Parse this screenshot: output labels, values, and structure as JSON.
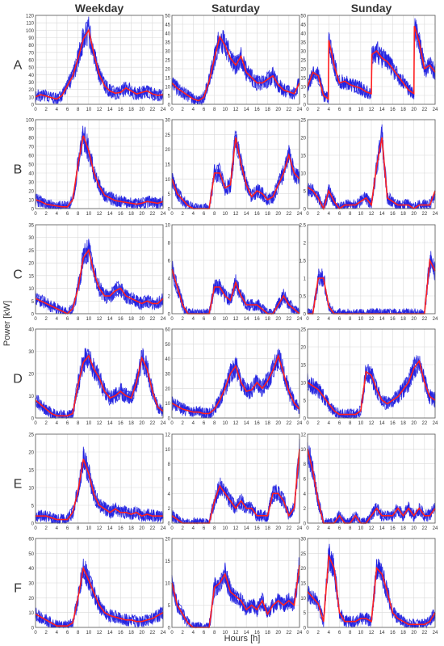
{
  "figure": {
    "column_titles": [
      "Weekday",
      "Saturday",
      "Sunday"
    ],
    "row_labels": [
      "A",
      "B",
      "C",
      "D",
      "E",
      "F"
    ],
    "ylabel": "Power [kW]",
    "xlabel": "Hours [h]",
    "colors": {
      "band": "#1f1fe0",
      "mean": "#ff2020",
      "grid": "#d9d9d9",
      "axis": "#555555"
    }
  },
  "chart_data": [
    {
      "type": "line",
      "row": "A",
      "column": "Weekday",
      "xlim": [
        0,
        24
      ],
      "ylim": [
        0,
        120
      ],
      "yticks": [
        0,
        10,
        20,
        30,
        40,
        50,
        60,
        70,
        80,
        90,
        100,
        110,
        120
      ],
      "x": [
        0,
        1,
        2,
        3,
        4,
        5,
        6,
        7,
        8,
        9,
        10,
        11,
        12,
        13,
        14,
        15,
        16,
        17,
        18,
        19,
        20,
        21,
        22,
        23,
        24
      ],
      "series": [
        {
          "values": [
            10,
            13,
            11,
            9,
            7,
            12,
            25,
            38,
            62,
            88,
            100,
            68,
            40,
            25,
            18,
            15,
            16,
            22,
            18,
            14,
            16,
            18,
            14,
            12,
            13
          ]
        }
      ]
    },
    {
      "type": "line",
      "row": "A",
      "column": "Saturday",
      "xlim": [
        0,
        24
      ],
      "ylim": [
        0,
        50
      ],
      "yticks": [
        0,
        5,
        10,
        15,
        20,
        25,
        30,
        35,
        40,
        45,
        50
      ],
      "x": [
        0,
        1,
        2,
        3,
        4,
        5,
        6,
        7,
        8,
        9,
        10,
        11,
        12,
        13,
        14,
        15,
        16,
        17,
        18,
        19,
        20,
        21,
        22,
        23,
        24
      ],
      "series": [
        {
          "values": [
            12,
            9,
            7,
            5,
            3,
            2,
            4,
            13,
            26,
            38,
            33,
            26,
            22,
            27,
            18,
            15,
            12,
            12,
            14,
            16,
            11,
            8,
            7,
            6,
            12
          ]
        }
      ]
    },
    {
      "type": "line",
      "row": "A",
      "column": "Sunday",
      "xlim": [
        0,
        24
      ],
      "ylim": [
        0,
        50
      ],
      "yticks": [
        0,
        5,
        10,
        15,
        20,
        25,
        30,
        35,
        40,
        45,
        50
      ],
      "x": [
        0,
        1,
        2,
        3,
        3.9,
        4,
        5,
        6,
        7,
        8,
        9,
        10,
        11,
        12,
        12.1,
        13,
        14,
        15,
        16,
        17,
        18,
        19,
        20,
        20.1,
        21,
        22,
        23,
        24
      ],
      "series": [
        {
          "values": [
            10,
            18,
            16,
            5,
            3,
            36,
            22,
            12,
            13,
            11,
            10,
            9,
            7,
            6,
            28,
            30,
            26,
            24,
            20,
            16,
            12,
            8,
            6,
            44,
            35,
            20,
            22,
            18
          ]
        }
      ]
    },
    {
      "type": "line",
      "row": "B",
      "column": "Weekday",
      "xlim": [
        0,
        24
      ],
      "ylim": [
        0,
        100
      ],
      "yticks": [
        0,
        10,
        20,
        30,
        40,
        50,
        60,
        70,
        80,
        90,
        100
      ],
      "x": [
        0,
        1,
        2,
        3,
        4,
        5,
        6,
        7,
        8,
        9,
        10,
        11,
        12,
        13,
        14,
        15,
        16,
        17,
        18,
        19,
        20,
        21,
        22,
        23,
        24
      ],
      "series": [
        {
          "values": [
            10,
            8,
            5,
            4,
            3,
            2,
            2,
            10,
            50,
            82,
            65,
            40,
            25,
            15,
            12,
            9,
            8,
            7,
            6,
            5,
            6,
            8,
            7,
            6,
            8
          ]
        }
      ]
    },
    {
      "type": "line",
      "row": "B",
      "column": "Saturday",
      "xlim": [
        0,
        24
      ],
      "ylim": [
        0,
        30
      ],
      "yticks": [
        0,
        5,
        10,
        15,
        20,
        25,
        30
      ],
      "x": [
        0,
        1,
        2,
        3,
        4,
        5,
        6,
        7,
        8,
        9,
        10,
        11,
        12,
        13,
        14,
        15,
        16,
        17,
        18,
        19,
        20,
        21,
        22,
        23,
        24
      ],
      "series": [
        {
          "values": [
            10,
            5,
            3,
            1,
            0,
            0,
            0,
            0,
            12,
            12,
            7,
            8,
            24,
            15,
            8,
            4,
            6,
            5,
            3,
            4,
            8,
            12,
            18,
            12,
            10
          ]
        }
      ]
    },
    {
      "type": "line",
      "row": "B",
      "column": "Sunday",
      "xlim": [
        0,
        24
      ],
      "ylim": [
        0,
        25
      ],
      "yticks": [
        0,
        5,
        10,
        15,
        20,
        25
      ],
      "x": [
        0,
        1,
        2,
        3,
        4,
        5,
        6,
        7,
        8,
        9,
        10,
        11,
        12,
        13,
        14,
        15,
        16,
        17,
        18,
        19,
        20,
        21,
        22,
        23,
        24
      ],
      "series": [
        {
          "values": [
            6,
            5,
            3,
            0,
            5,
            2,
            0,
            1,
            1,
            1,
            2,
            3,
            1,
            12,
            20,
            3,
            2,
            1,
            1,
            1,
            0,
            1,
            1,
            1,
            5
          ]
        }
      ]
    },
    {
      "type": "line",
      "row": "C",
      "column": "Weekday",
      "xlim": [
        0,
        24
      ],
      "ylim": [
        0,
        35
      ],
      "yticks": [
        0,
        5,
        10,
        15,
        20,
        25,
        30,
        35
      ],
      "x": [
        0,
        1,
        2,
        3,
        4,
        5,
        6,
        7,
        8,
        9,
        10,
        11,
        12,
        13,
        14,
        15,
        16,
        17,
        18,
        19,
        20,
        21,
        22,
        23,
        24
      ],
      "series": [
        {
          "values": [
            6,
            5,
            4,
            3,
            2,
            1,
            0,
            2,
            10,
            22,
            25,
            16,
            10,
            7,
            7,
            9,
            10,
            7,
            6,
            5,
            4,
            5,
            4,
            4,
            6
          ]
        }
      ]
    },
    {
      "type": "line",
      "row": "C",
      "column": "Saturday",
      "xlim": [
        0,
        24
      ],
      "ylim": [
        0,
        10
      ],
      "yticks": [
        0,
        2,
        4,
        6,
        8,
        10
      ],
      "x": [
        0,
        1,
        2,
        3,
        4,
        5,
        6,
        7,
        8,
        9,
        10,
        11,
        12,
        13,
        14,
        15,
        16,
        17,
        18,
        19,
        20,
        21,
        22,
        23,
        24
      ],
      "series": [
        {
          "values": [
            5,
            3,
            1,
            0,
            0,
            0,
            0,
            0,
            3,
            3,
            2,
            1.5,
            3.5,
            2,
            1,
            1,
            1,
            0.5,
            0,
            0,
            1,
            2,
            1,
            0.5,
            0
          ]
        }
      ]
    },
    {
      "type": "line",
      "row": "C",
      "column": "Sunday",
      "xlim": [
        0,
        24
      ],
      "ylim": [
        0,
        2.5
      ],
      "yticks": [
        0,
        0.5,
        1,
        1.5,
        2,
        2.5
      ],
      "x": [
        0,
        1,
        2,
        3,
        4,
        5,
        6,
        7,
        8,
        9,
        10,
        11,
        12,
        13,
        14,
        15,
        16,
        17,
        18,
        19,
        20,
        21,
        22,
        23,
        24
      ],
      "series": [
        {
          "values": [
            0,
            0,
            1,
            1,
            0.2,
            0,
            0,
            0,
            0,
            0,
            0,
            0,
            0,
            0,
            0,
            0,
            0,
            0,
            0,
            0,
            0,
            0,
            0,
            1.5,
            1.2
          ]
        }
      ]
    },
    {
      "type": "line",
      "row": "D",
      "column": "Weekday",
      "xlim": [
        0,
        24
      ],
      "ylim": [
        0,
        40
      ],
      "yticks": [
        0,
        10,
        20,
        30,
        40
      ],
      "x": [
        0,
        1,
        2,
        3,
        4,
        5,
        6,
        7,
        8,
        9,
        10,
        11,
        12,
        13,
        14,
        15,
        16,
        17,
        18,
        19,
        20,
        21,
        22,
        23,
        24
      ],
      "series": [
        {
          "values": [
            8,
            6,
            4,
            2,
            1,
            1,
            1,
            2,
            15,
            25,
            28,
            22,
            18,
            12,
            9,
            10,
            12,
            10,
            9,
            16,
            27,
            22,
            12,
            5,
            3
          ]
        }
      ]
    },
    {
      "type": "line",
      "row": "D",
      "column": "Saturday",
      "xlim": [
        0,
        24
      ],
      "ylim": [
        0,
        60
      ],
      "yticks": [
        0,
        10,
        20,
        30,
        40,
        50,
        60
      ],
      "x": [
        0,
        1,
        2,
        3,
        4,
        5,
        6,
        7,
        8,
        9,
        10,
        11,
        12,
        13,
        14,
        15,
        16,
        17,
        18,
        19,
        20,
        21,
        22,
        23,
        24
      ],
      "series": [
        {
          "values": [
            10,
            8,
            6,
            5,
            4,
            4,
            3,
            3,
            6,
            12,
            20,
            30,
            35,
            24,
            18,
            19,
            24,
            20,
            25,
            32,
            42,
            30,
            18,
            10,
            6
          ]
        }
      ]
    },
    {
      "type": "line",
      "row": "D",
      "column": "Sunday",
      "xlim": [
        0,
        24
      ],
      "ylim": [
        0,
        25
      ],
      "yticks": [
        0,
        5,
        10,
        15,
        20,
        25
      ],
      "x": [
        0,
        1,
        2,
        3,
        4,
        5,
        6,
        7,
        8,
        9,
        10,
        11,
        12,
        13,
        14,
        15,
        16,
        17,
        18,
        19,
        20,
        21,
        22,
        23,
        24
      ],
      "series": [
        {
          "values": [
            10,
            9,
            8,
            6,
            4,
            2,
            1,
            1,
            1,
            1,
            2,
            13,
            12,
            8,
            5,
            4,
            5,
            6,
            8,
            10,
            14,
            16,
            10,
            6,
            5
          ]
        }
      ]
    },
    {
      "type": "line",
      "row": "E",
      "column": "Weekday",
      "xlim": [
        0,
        24
      ],
      "ylim": [
        0,
        25
      ],
      "yticks": [
        0,
        5,
        10,
        15,
        20,
        25
      ],
      "x": [
        0,
        1,
        2,
        3,
        4,
        5,
        6,
        7,
        8,
        9,
        10,
        11,
        12,
        13,
        14,
        15,
        16,
        17,
        18,
        19,
        20,
        21,
        22,
        23,
        24
      ],
      "series": [
        {
          "values": [
            2,
            2,
            2,
            1.5,
            1,
            1,
            1,
            3,
            9,
            18,
            14,
            8,
            5,
            4,
            3,
            4,
            3,
            3,
            2.5,
            3,
            2,
            2.5,
            2,
            2,
            2
          ]
        }
      ]
    },
    {
      "type": "line",
      "row": "E",
      "column": "Saturday",
      "xlim": [
        0,
        24
      ],
      "ylim": [
        0,
        12
      ],
      "yticks": [
        0,
        2,
        4,
        6,
        8,
        10,
        12
      ],
      "x": [
        0,
        1,
        2,
        3,
        4,
        5,
        6,
        7,
        8,
        9,
        10,
        11,
        12,
        13,
        14,
        15,
        16,
        17,
        18,
        19,
        20,
        21,
        22,
        23,
        24
      ],
      "series": [
        {
          "values": [
            1,
            0.5,
            0,
            0,
            0,
            0,
            0,
            0,
            3,
            5,
            4,
            3,
            2,
            3,
            2,
            2,
            1,
            1,
            1,
            4,
            4,
            3,
            1,
            2,
            10
          ]
        }
      ]
    },
    {
      "type": "line",
      "row": "E",
      "column": "Sunday",
      "xlim": [
        0,
        24
      ],
      "ylim": [
        0,
        12
      ],
      "yticks": [
        0,
        2,
        4,
        6,
        8,
        10,
        12
      ],
      "x": [
        0,
        1,
        2,
        3,
        4,
        5,
        6,
        7,
        8,
        9,
        10,
        11,
        12,
        13,
        14,
        15,
        16,
        17,
        18,
        19,
        20,
        21,
        22,
        23,
        24
      ],
      "series": [
        {
          "values": [
            10,
            7,
            3,
            0,
            0,
            0,
            1,
            0,
            0,
            1,
            0,
            0,
            1,
            2,
            1,
            1,
            1,
            2,
            1,
            2,
            1,
            2,
            1,
            1,
            2
          ]
        }
      ]
    },
    {
      "type": "line",
      "row": "F",
      "column": "Weekday",
      "xlim": [
        0,
        24
      ],
      "ylim": [
        0,
        60
      ],
      "yticks": [
        0,
        10,
        20,
        30,
        40,
        50,
        60
      ],
      "x": [
        0,
        1,
        2,
        3,
        4,
        5,
        6,
        7,
        8,
        9,
        10,
        11,
        12,
        13,
        14,
        15,
        16,
        17,
        18,
        19,
        20,
        21,
        22,
        23,
        24
      ],
      "series": [
        {
          "values": [
            9,
            7,
            5,
            3,
            1,
            1,
            1,
            3,
            20,
            40,
            32,
            23,
            15,
            10,
            8,
            7,
            6,
            5,
            5,
            4,
            4,
            5,
            6,
            8,
            10
          ]
        }
      ]
    },
    {
      "type": "line",
      "row": "F",
      "column": "Saturday",
      "xlim": [
        0,
        24
      ],
      "ylim": [
        0,
        20
      ],
      "yticks": [
        0,
        5,
        10,
        15,
        20
      ],
      "x": [
        0,
        1,
        2,
        3,
        4,
        5,
        6,
        7,
        8,
        9,
        10,
        11,
        12,
        13,
        14,
        15,
        16,
        17,
        18,
        19,
        20,
        21,
        22,
        23,
        24
      ],
      "series": [
        {
          "values": [
            10,
            5,
            3,
            1,
            0,
            0,
            0,
            0,
            9,
            10,
            12,
            8,
            7,
            6,
            4,
            5,
            4,
            6,
            3,
            5,
            6,
            5,
            6,
            5,
            14
          ]
        }
      ]
    },
    {
      "type": "line",
      "row": "F",
      "column": "Sunday",
      "xlim": [
        0,
        24
      ],
      "ylim": [
        0,
        30
      ],
      "yticks": [
        0,
        5,
        10,
        15,
        20,
        25,
        30
      ],
      "x": [
        0,
        1,
        2,
        3,
        4,
        5,
        6,
        7,
        8,
        9,
        10,
        11,
        12,
        13,
        14,
        15,
        16,
        17,
        18,
        19,
        20,
        21,
        22,
        23,
        24
      ],
      "series": [
        {
          "values": [
            12,
            10,
            8,
            2,
            24,
            20,
            5,
            2,
            2,
            2,
            3,
            3,
            2,
            20,
            18,
            12,
            5,
            3,
            2,
            1,
            1,
            1,
            1,
            2,
            5
          ]
        }
      ]
    }
  ]
}
